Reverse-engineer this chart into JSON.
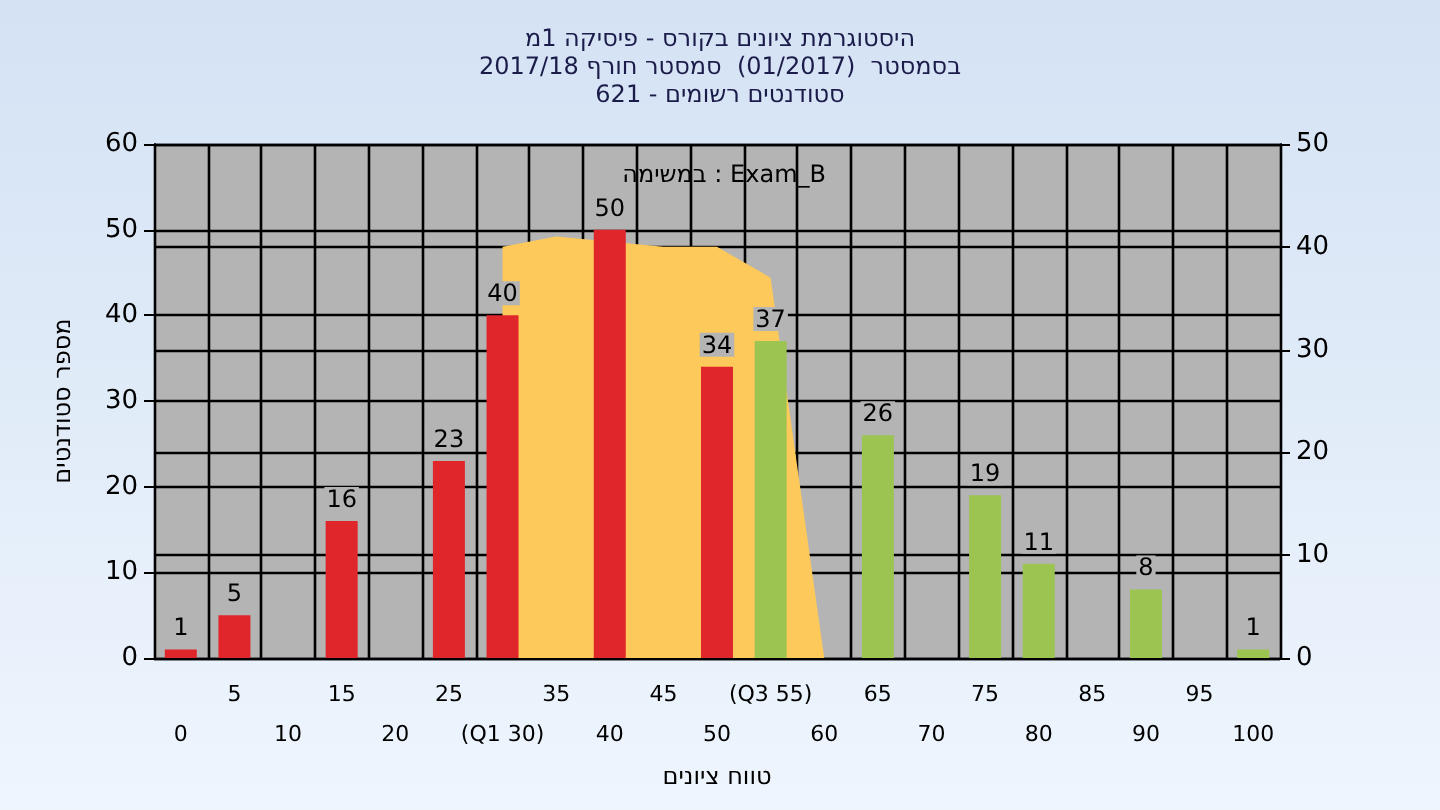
{
  "chart_data": {
    "type": "bar",
    "title": "היסטוגרמת ציונים בקורס - פיסיקה 1מ",
    "subtitle": "בסמסטר  (01/2017)  סמסטר חורף 2017/18\nסטודנטים רשומים - 621",
    "xlabel": "טווח ציונים",
    "ylabel": "מספר סטודנטים",
    "annotations": [
      "במשימה : Exam_B"
    ],
    "categories": [
      "0",
      "5",
      "10",
      "15",
      "20",
      "25",
      "(Q1 30)",
      "35",
      "40",
      "45",
      "50",
      "(Q3 55)",
      "60",
      "65",
      "70",
      "75",
      "80",
      "85",
      "90",
      "95",
      "100"
    ],
    "series": [
      {
        "type": "area",
        "axis": "y2",
        "color": "#fdc95a",
        "values": [
          null,
          null,
          null,
          null,
          null,
          null,
          40,
          41,
          null,
          40,
          40,
          37,
          0,
          null,
          null,
          null,
          null,
          null,
          null,
          null,
          null
        ]
      },
      {
        "color": "#e0262b",
        "values": [
          1,
          5,
          null,
          16,
          null,
          23,
          40,
          null,
          50,
          null,
          34,
          null,
          null,
          null,
          null,
          null,
          null,
          null,
          null,
          null,
          null
        ],
        "value_labels": [
          "1",
          "5",
          null,
          "16",
          null,
          "23",
          "40",
          null,
          "50",
          null,
          "34",
          null,
          null,
          null,
          null,
          null,
          null,
          null,
          null,
          null,
          null
        ]
      },
      {
        "color": "#9cc451",
        "values": [
          null,
          null,
          null,
          null,
          null,
          null,
          null,
          null,
          null,
          null,
          null,
          37,
          null,
          26,
          null,
          19,
          11,
          null,
          8,
          null,
          1
        ],
        "value_labels": [
          null,
          null,
          null,
          null,
          null,
          null,
          null,
          null,
          null,
          null,
          null,
          "37",
          null,
          "26",
          null,
          "19",
          "11",
          null,
          "8",
          null,
          "1"
        ]
      }
    ],
    "ylim": [
      0,
      60
    ],
    "yticks": [
      0,
      10,
      20,
      30,
      40,
      50,
      60
    ],
    "y2lim": [
      0,
      50
    ],
    "y2ticks": [
      0,
      10,
      20,
      30,
      40,
      50
    ],
    "grid": true
  }
}
